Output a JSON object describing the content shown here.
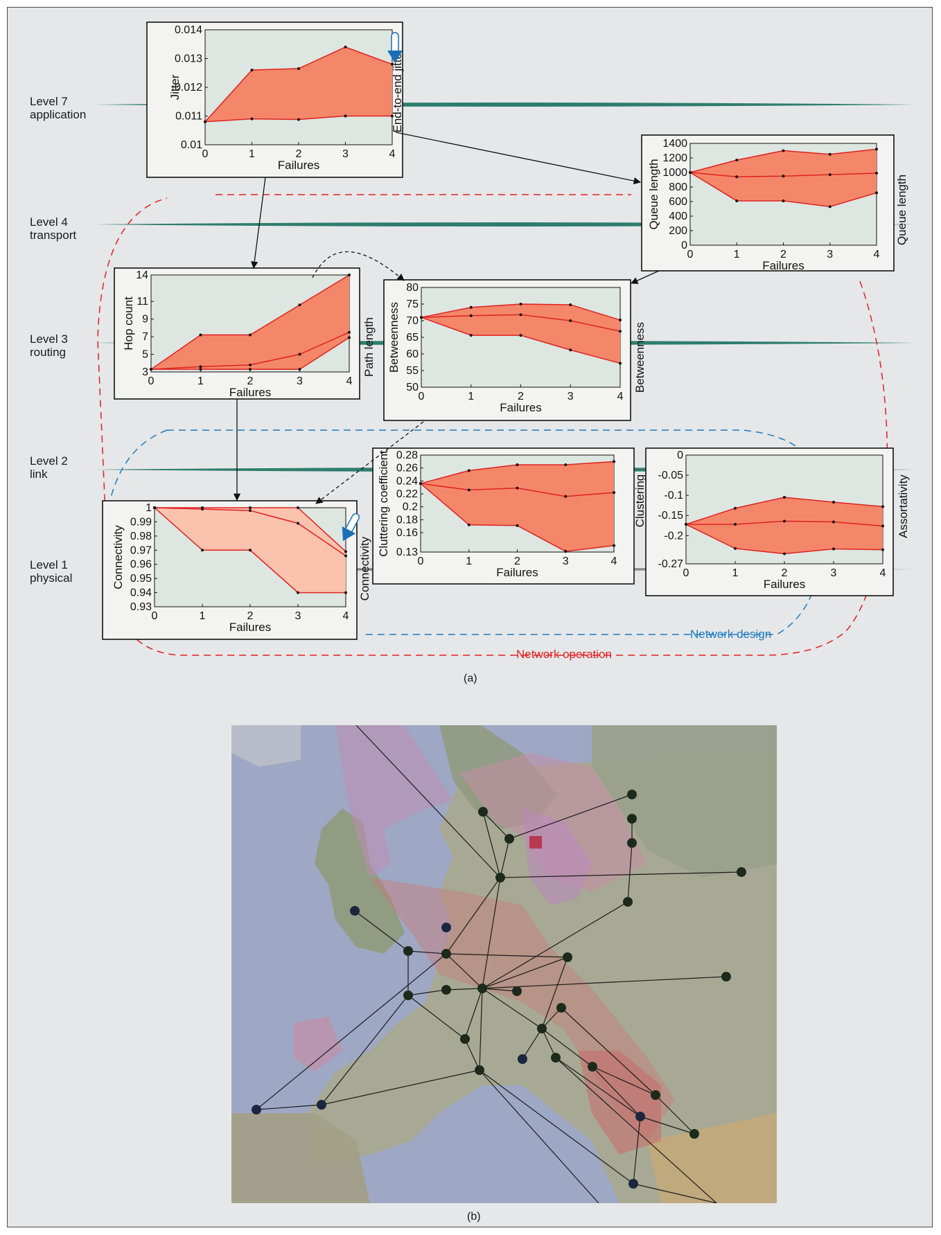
{
  "levels": [
    {
      "name": "Level 7",
      "sub": "application"
    },
    {
      "name": "Level 4",
      "sub": "transport"
    },
    {
      "name": "Level 3",
      "sub": "routing"
    },
    {
      "name": "Level 2",
      "sub": "link"
    },
    {
      "name": "Level 1",
      "sub": "physical"
    }
  ],
  "flows": {
    "design": "Network design",
    "operation": "Network operation"
  },
  "captions": {
    "a": "(a)",
    "b": "(b)"
  },
  "colors": {
    "band_fill": "#f4876a",
    "band_light": "#fbc2ad",
    "line": "#e02020",
    "plot_bg": "#dde6e0",
    "layer": "#2e7d6e",
    "design": "#1a7ac4",
    "operation": "#e02020"
  },
  "chart_data": [
    {
      "id": "jitter",
      "type": "area",
      "xlabel": "Failures",
      "ylabel": "Jitter",
      "side_label": "End-to-end jitter",
      "x": [
        0,
        1,
        2,
        3,
        4
      ],
      "ylim": [
        0.01,
        0.014
      ],
      "yticks": [
        0.01,
        0.011,
        0.012,
        0.013,
        0.014
      ],
      "ytick_labels": [
        "0.01",
        "0.011",
        "0.012",
        "0.013",
        "0.014"
      ],
      "upper": [
        0.0108,
        0.0126,
        0.01265,
        0.0134,
        0.0128
      ],
      "lower": [
        0.0108,
        0.0109,
        0.01088,
        0.011,
        0.011
      ]
    },
    {
      "id": "queue",
      "type": "area",
      "xlabel": "Failures",
      "ylabel": "Queue length",
      "side_label": "Queue length",
      "x": [
        0,
        1,
        2,
        3,
        4
      ],
      "ylim": [
        0,
        1400
      ],
      "yticks": [
        0,
        200,
        400,
        600,
        800,
        1000,
        1200,
        1400
      ],
      "ytick_labels": [
        "0",
        "200",
        "400",
        "600",
        "800",
        "1000",
        "1200",
        "1400"
      ],
      "upper": [
        1000,
        1170,
        1300,
        1250,
        1320
      ],
      "middle": [
        1000,
        940,
        950,
        970,
        990
      ],
      "lower": [
        1000,
        610,
        610,
        530,
        720
      ]
    },
    {
      "id": "hops",
      "type": "area",
      "xlabel": "Failures",
      "ylabel": "Hop count",
      "side_label": "Path length",
      "x": [
        0,
        1,
        2,
        3,
        4
      ],
      "ylim": [
        3,
        14
      ],
      "yticks": [
        3,
        5,
        7,
        9,
        11,
        14
      ],
      "ytick_labels": [
        "3",
        "5",
        "7",
        "9",
        "11",
        "14"
      ],
      "upper": [
        3.3,
        7.2,
        7.2,
        10.6,
        14.0
      ],
      "middle": [
        3.3,
        3.6,
        3.8,
        5.0,
        7.5
      ],
      "lower": [
        3.3,
        3.3,
        3.3,
        3.3,
        6.9
      ]
    },
    {
      "id": "betw",
      "type": "area",
      "xlabel": "Failures",
      "ylabel": "Betweenness",
      "side_label": "Betweenness",
      "x": [
        0,
        1,
        2,
        3,
        4
      ],
      "ylim": [
        50,
        80
      ],
      "yticks": [
        50,
        55,
        60,
        65,
        70,
        75,
        80
      ],
      "ytick_labels": [
        "50",
        "55",
        "60",
        "65",
        "70",
        "75",
        "80"
      ],
      "upper": [
        71,
        74,
        75,
        74.8,
        70.2
      ],
      "middle": [
        71,
        71.5,
        71.8,
        70,
        66.8
      ],
      "lower": [
        71,
        65.6,
        65.6,
        61.2,
        57.2
      ]
    },
    {
      "id": "conn",
      "type": "area",
      "xlabel": "Failures",
      "ylabel": "Connectivity",
      "side_label": "Connectivity",
      "x": [
        0,
        1,
        2,
        3,
        4
      ],
      "ylim": [
        0.93,
        1.0
      ],
      "yticks": [
        0.93,
        0.94,
        0.95,
        0.96,
        0.97,
        0.98,
        0.99,
        1.0
      ],
      "ytick_labels": [
        "0.93",
        "0.94",
        "0.95",
        "0.96",
        "0.97",
        "0.98",
        "0.99",
        "1"
      ],
      "upper": [
        1.0,
        1.0,
        1.0,
        1.0,
        0.969
      ],
      "middle": [
        1.0,
        0.999,
        0.998,
        0.989,
        0.966
      ],
      "lower": [
        1.0,
        0.97,
        0.97,
        0.94,
        0.94
      ],
      "light": true
    },
    {
      "id": "clust",
      "type": "area",
      "xlabel": "Failures",
      "ylabel": "Cluttering coefficient",
      "side_label": "Clustering",
      "x": [
        0,
        1,
        2,
        3,
        4
      ],
      "ylim": [
        0.13,
        0.28
      ],
      "yticks": [
        0.13,
        0.16,
        0.18,
        0.2,
        0.22,
        0.24,
        0.26,
        0.28
      ],
      "ytick_labels": [
        "0.13",
        "0.16",
        "0.18",
        "0.2",
        "0.22",
        "0.24",
        "0.26",
        "0.28"
      ],
      "upper": [
        0.236,
        0.256,
        0.265,
        0.265,
        0.27
      ],
      "middle": [
        0.236,
        0.226,
        0.229,
        0.216,
        0.222
      ],
      "lower": [
        0.236,
        0.172,
        0.171,
        0.131,
        0.14
      ]
    },
    {
      "id": "assort",
      "type": "area",
      "xlabel": "Failures",
      "ylabel": "",
      "side_label": "Assortativity",
      "x": [
        0,
        1,
        2,
        3,
        4
      ],
      "ylim": [
        -0.27,
        0
      ],
      "yticks": [
        -0.27,
        -0.2,
        -0.15,
        -0.1,
        -0.05,
        0
      ],
      "ytick_labels": [
        "-0.27",
        "-0.2",
        "-0.15",
        "-0.1",
        "-0.05",
        "0"
      ],
      "upper": [
        -0.172,
        -0.132,
        -0.105,
        -0.117,
        -0.128
      ],
      "middle": [
        -0.172,
        -0.172,
        -0.164,
        -0.166,
        -0.176
      ],
      "lower": [
        -0.172,
        -0.232,
        -0.245,
        -0.233,
        -0.235
      ]
    }
  ]
}
